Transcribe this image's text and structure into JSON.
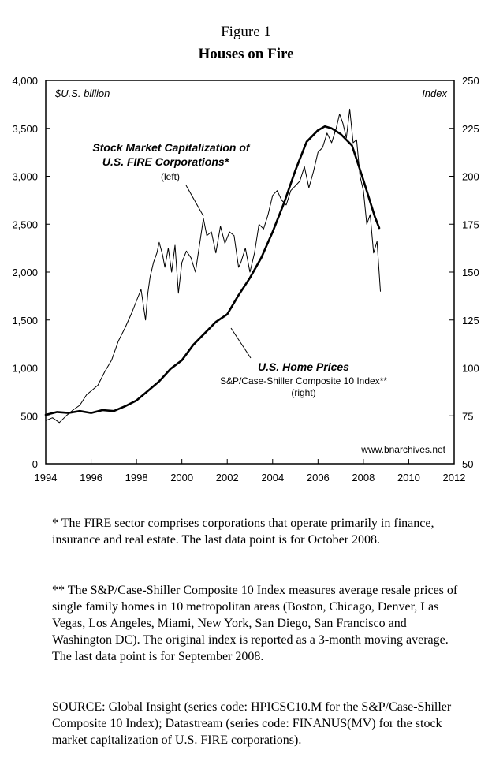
{
  "figure": {
    "number": "Figure 1",
    "title": "Houses on Fire"
  },
  "chart_data": {
    "type": "line",
    "x_ticks": [
      "1994",
      "1996",
      "1998",
      "2000",
      "2002",
      "2004",
      "2006",
      "2008",
      "2010",
      "2012"
    ],
    "xlim": [
      1994,
      2012
    ],
    "left_axis": {
      "label": "$U.S. billion",
      "ticks": [
        "4,000",
        "3,500",
        "3,000",
        "2,500",
        "2,000",
        "1,500",
        "1,000",
        "500",
        "0"
      ],
      "ylim": [
        0,
        4000
      ]
    },
    "right_axis": {
      "label": "Index",
      "ticks": [
        "250",
        "225",
        "200",
        "175",
        "150",
        "125",
        "100",
        "75",
        "50"
      ],
      "ylim": [
        50,
        250
      ]
    },
    "watermark": "www.bnarchives.net",
    "series": [
      {
        "axis": "left",
        "color": "#000000",
        "annotation": {
          "line1": "Stock Market Capitalization of",
          "line2": "U.S. FIRE Corporations*",
          "line3": "(left)"
        },
        "x": [
          1994.0,
          1994.3,
          1994.6,
          1994.9,
          1995.2,
          1995.5,
          1995.8,
          1996.0,
          1996.3,
          1996.6,
          1996.9,
          1997.2,
          1997.5,
          1997.8,
          1998.0,
          1998.2,
          1998.4,
          1998.5,
          1998.6,
          1998.75,
          1998.9,
          1999.0,
          1999.15,
          1999.25,
          1999.4,
          1999.55,
          1999.7,
          1999.85,
          2000.0,
          2000.2,
          2000.4,
          2000.6,
          2000.8,
          2000.95,
          2001.1,
          2001.3,
          2001.5,
          2001.7,
          2001.9,
          2002.1,
          2002.3,
          2002.5,
          2002.6,
          2002.8,
          2003.0,
          2003.2,
          2003.4,
          2003.6,
          2003.8,
          2004.0,
          2004.2,
          2004.4,
          2004.6,
          2004.8,
          2005.0,
          2005.2,
          2005.4,
          2005.6,
          2005.8,
          2006.0,
          2006.2,
          2006.4,
          2006.6,
          2006.8,
          2006.95,
          2007.1,
          2007.25,
          2007.4,
          2007.55,
          2007.7,
          2007.85,
          2008.0,
          2008.15,
          2008.3,
          2008.45,
          2008.6,
          2008.75
        ],
        "values": [
          450,
          480,
          430,
          500,
          560,
          610,
          720,
          760,
          820,
          960,
          1080,
          1280,
          1420,
          1580,
          1700,
          1820,
          1500,
          1780,
          1950,
          2100,
          2200,
          2310,
          2180,
          2050,
          2250,
          2000,
          2280,
          1780,
          2100,
          2220,
          2150,
          2000,
          2320,
          2560,
          2380,
          2420,
          2200,
          2480,
          2300,
          2420,
          2380,
          2050,
          2100,
          2250,
          2000,
          2200,
          2500,
          2450,
          2600,
          2800,
          2850,
          2750,
          2700,
          2850,
          2900,
          2950,
          3100,
          2880,
          3050,
          3250,
          3300,
          3450,
          3350,
          3500,
          3650,
          3550,
          3400,
          3700,
          3350,
          3380,
          3000,
          2850,
          2500,
          2600,
          2200,
          2320,
          1800
        ]
      },
      {
        "axis": "right",
        "color": "#000000",
        "annotation": {
          "line1": "U.S. Home Prices",
          "line2": "S&P/Case-Shiller Composite 10 Index**",
          "line3": "(right)"
        },
        "x": [
          1994.0,
          1994.5,
          1995.0,
          1995.5,
          1996.0,
          1996.5,
          1997.0,
          1997.5,
          1998.0,
          1998.5,
          1999.0,
          1999.5,
          2000.0,
          2000.5,
          2001.0,
          2001.5,
          2002.0,
          2002.5,
          2003.0,
          2003.5,
          2004.0,
          2004.5,
          2005.0,
          2005.5,
          2006.0,
          2006.3,
          2006.6,
          2007.0,
          2007.5,
          2008.0,
          2008.5,
          2008.7
        ],
        "values": [
          75.5,
          77.0,
          76.5,
          77.5,
          76.5,
          78.0,
          77.5,
          80.0,
          83.0,
          88.0,
          93.0,
          99.5,
          104.0,
          112.0,
          118.0,
          124.0,
          128.0,
          138.0,
          147.0,
          157.5,
          171.0,
          186.0,
          203.0,
          218.0,
          224.0,
          226.0,
          225.0,
          222.0,
          216.0,
          198.0,
          179.0,
          173.0
        ]
      }
    ]
  },
  "notes": {
    "note1": "* The FIRE sector comprises corporations that operate primarily in finance, insurance and real estate. The last data point is for October 2008.",
    "note2": "** The S&P/Case-Shiller Composite 10 Index measures average resale prices of single family homes in 10 metropolitan areas (Boston, Chicago, Denver, Las Vegas, Los Angeles, Miami, New York, San Diego, San Francisco and Washington DC). The original index is reported as a 3-month moving average. The last data point is for September 2008.",
    "source": "SOURCE: Global Insight (series code: HPICSC10.M for the S&P/Case-Shiller Composite 10 Index); Datastream (series code: FINANUS(MV) for the stock market capitalization of U.S. FIRE corporations)."
  }
}
